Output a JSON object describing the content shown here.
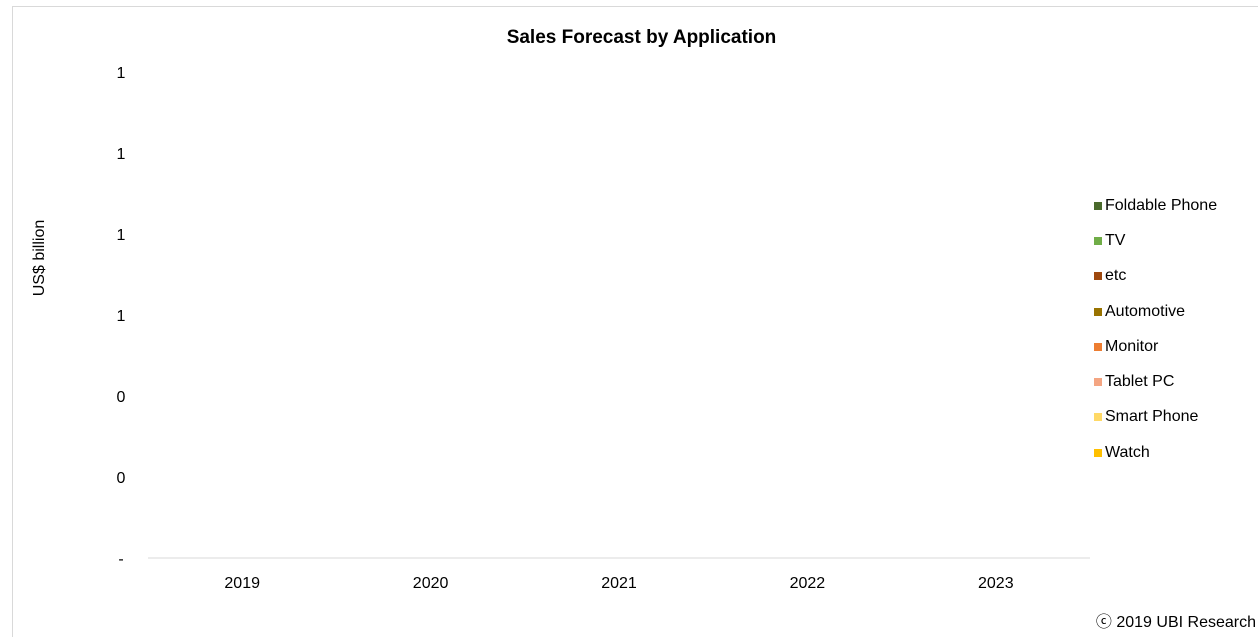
{
  "chart_data": {
    "type": "bar",
    "title": "Sales Forecast by Application",
    "xlabel": "",
    "ylabel": "US$ billion",
    "categories": [
      "2019",
      "2020",
      "2021",
      "2022",
      "2023"
    ],
    "y_tick_labels": [
      "-",
      "0",
      "0",
      "1",
      "1",
      "1",
      "1"
    ],
    "ylim": [
      0,
      1
    ],
    "grid": false,
    "legend_position": "right",
    "series": [
      {
        "name": "Foldable Phone",
        "color": "#4a6a2c",
        "values": [
          0,
          0,
          0,
          0,
          0
        ]
      },
      {
        "name": "TV",
        "color": "#70ad47",
        "values": [
          0,
          0,
          0,
          0,
          0
        ]
      },
      {
        "name": "etc",
        "color": "#9e480e",
        "values": [
          0,
          0,
          0,
          0,
          0
        ]
      },
      {
        "name": "Automotive",
        "color": "#997300",
        "values": [
          0,
          0,
          0,
          0,
          0
        ]
      },
      {
        "name": "Monitor",
        "color": "#ed7d31",
        "values": [
          0,
          0,
          0,
          0,
          0
        ]
      },
      {
        "name": "Tablet PC",
        "color": "#f4a582",
        "values": [
          0,
          0,
          0,
          0,
          0
        ]
      },
      {
        "name": "Smart Phone",
        "color": "#ffd966",
        "values": [
          0,
          0,
          0,
          0,
          0
        ]
      },
      {
        "name": "Watch",
        "color": "#ffc000",
        "values": [
          0,
          0,
          0,
          0,
          0
        ]
      }
    ]
  },
  "copyright": "ⓒ 2019 UBI Research"
}
